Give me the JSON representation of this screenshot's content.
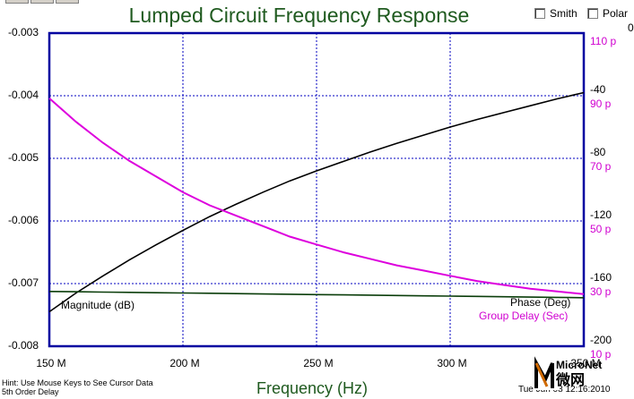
{
  "window": {
    "title": "Lumped Circuit Frequency Response"
  },
  "options": {
    "smith_label": "Smith",
    "polar_label": "Polar"
  },
  "axes": {
    "left_ticks": [
      "-0.003",
      "-0.004",
      "-0.005",
      "-0.006",
      "-0.007",
      "-0.008"
    ],
    "right_black_ticks": [
      "0",
      "-40",
      "-80",
      "-120",
      "-160",
      "-200"
    ],
    "right_pink_ticks": [
      "110 p",
      "90 p",
      "70 p",
      "50 p",
      "30 p",
      "10 p"
    ],
    "x_ticks": [
      "150 M",
      "200 M",
      "250 M",
      "300 M",
      "350 M"
    ],
    "xlabel": "Frequency (Hz)"
  },
  "trace_labels": {
    "magnitude": "Magnitude (dB)",
    "phase": "Phase (Deg)",
    "group_delay": "Group Delay (Sec)"
  },
  "status": {
    "hint": "Hint: Use Mouse Keys to See Cursor Data",
    "filter_name": "5th Order Delay",
    "timestamp": "Tue Jun 08 12:16:2010"
  },
  "logo": {
    "brand": "MicroNet",
    "cjk": "微网"
  },
  "colors": {
    "title": "#1f5a1f",
    "frame": "#0000a0",
    "grid": "#0000c0",
    "magnitude": "#000000",
    "phase": "#0a3d0a",
    "group_delay": "#dd00dd"
  },
  "chart_data": {
    "type": "line",
    "xlabel": "Frequency (Hz)",
    "xlim": [
      150,
      350
    ],
    "x_unit": "MHz",
    "x": [
      150,
      160,
      170,
      180,
      190,
      200,
      210,
      220,
      230,
      240,
      250,
      260,
      270,
      280,
      290,
      300,
      310,
      320,
      330,
      340,
      350
    ],
    "series": [
      {
        "name": "Magnitude (dB)",
        "axis": "left",
        "ylim": [
          -0.008,
          -0.003
        ],
        "values": [
          -0.00745,
          -0.00715,
          -0.00688,
          -0.00662,
          -0.00638,
          -0.00615,
          -0.00593,
          -0.00573,
          -0.00554,
          -0.00536,
          -0.0052,
          -0.00505,
          -0.0049,
          -0.00476,
          -0.00463,
          -0.0045,
          -0.00438,
          -0.00427,
          -0.00416,
          -0.00405,
          -0.00395
        ]
      },
      {
        "name": "Phase (Deg)",
        "axis": "right",
        "ylim": [
          -200,
          0
        ],
        "values": [
          -165,
          -165.2,
          -165.4,
          -165.6,
          -165.8,
          -166,
          -166.2,
          -166.4,
          -166.6,
          -166.8,
          -167,
          -167.2,
          -167.4,
          -167.6,
          -167.8,
          -168,
          -168.2,
          -168.4,
          -168.6,
          -168.8,
          -169
        ]
      },
      {
        "name": "Group Delay (Sec)",
        "axis": "right2",
        "ylim": [
          0,
          120
        ],
        "unit": "ps",
        "values": [
          95,
          86,
          78,
          71,
          65,
          59,
          54,
          50,
          46,
          42,
          39,
          36,
          33.5,
          31,
          29,
          27,
          25,
          23.5,
          22,
          21,
          20
        ]
      }
    ],
    "grid": true
  }
}
